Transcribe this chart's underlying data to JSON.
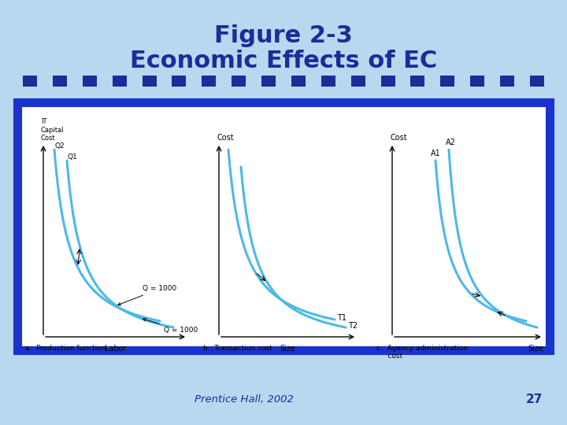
{
  "title_line1": "Figure 2-3",
  "title_line2": "Economic Effects of EC",
  "title_color": "#1a2d99",
  "bg_color": "#b8d8f0",
  "box_bg": "#ffffff",
  "box_border_color": "#1a33cc",
  "dot_color": "#1a2d99",
  "curve_color": "#4db8e8",
  "footer_text": "Prentice Hall, 2002",
  "page_number": "27",
  "sub_a_title": "a.  Production function",
  "sub_b_title": "b.  Transaction cost",
  "sub_c_title": "c.  Agency administration\n     cost",
  "label_q2": "Q2",
  "label_q1": "Q1",
  "label_q1000_upper": "Q = 1000",
  "label_q1000_lower": "Q = 1000",
  "label_labor": "Labor",
  "label_it_cap": "IT\nCapital\nCost",
  "label_cost_a": "Cost",
  "label_cost_b": "Cost",
  "label_cost_c": "Cost",
  "label_t1": "T1",
  "label_t2": "T2",
  "label_a1": "A1",
  "label_a2": "A2",
  "label_size_b": "Size",
  "label_size_c": "Size"
}
